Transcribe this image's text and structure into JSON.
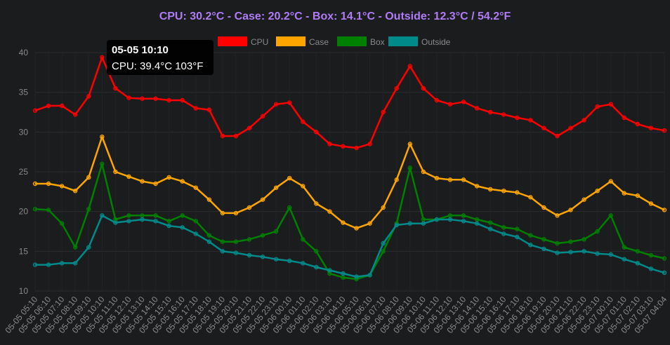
{
  "chart_data": {
    "type": "line",
    "title": "CPU: 30.2°C - Case: 20.2°C - Box: 14.1°C - Outside: 12.3°C / 54.2°F",
    "title_color": "#b07cf5",
    "ylim": [
      10,
      40
    ],
    "yticks": [
      10,
      15,
      20,
      25,
      30,
      35,
      40
    ],
    "grid": true,
    "legend_position": "top-center",
    "x_tick_labels": [
      "05-05 05:10",
      "05-05 06:10",
      "05-05 07:10",
      "05-05 08:10",
      "05-05 09:10",
      "05-05 10:10",
      "05-05 11:10",
      "05-05 12:10",
      "05-05 13:10",
      "05-05 14:10",
      "05-05 15:10",
      "05-05 16:10",
      "05-05 17:10",
      "05-05 18:10",
      "05-05 19:10",
      "05-05 20:10",
      "05-05 21:10",
      "05-05 22:10",
      "05-05 23:10",
      "05-06 00:10",
      "05-06 01:10",
      "05-06 02:10",
      "05-06 03:10",
      "05-06 04:10",
      "05-06 05:10",
      "05-06 06:10",
      "05-06 07:10",
      "05-06 08:10",
      "05-06 09:10",
      "05-06 10:10",
      "05-06 11:10",
      "05-06 12:10",
      "05-06 13:10",
      "05-06 14:10",
      "05-06 15:10",
      "05-06 16:10",
      "05-06 17:10",
      "05-06 18:10",
      "05-06 19:10",
      "05-06 20:10",
      "05-06 21:10",
      "05-06 22:10",
      "05-06 23:10",
      "05-07 00:10",
      "05-07 01:10",
      "05-07 02:10",
      "05-07 03:10",
      "05-07 04:04"
    ],
    "series": [
      {
        "name": "CPU",
        "color": "#ff0000",
        "values": [
          32.7,
          33.3,
          33.3,
          32.2,
          34.5,
          39.4,
          35.5,
          34.3,
          34.2,
          34.2,
          34.0,
          34.0,
          33.0,
          32.8,
          29.5,
          29.5,
          30.5,
          32.0,
          33.5,
          33.7,
          31.3,
          30.0,
          28.5,
          28.2,
          28.0,
          28.5,
          32.5,
          35.5,
          38.3,
          35.5,
          34.0,
          33.5,
          33.8,
          33.0,
          32.5,
          32.2,
          31.8,
          31.5,
          30.5,
          29.5,
          30.5,
          31.5,
          33.2,
          33.5,
          31.8,
          31.0,
          30.5,
          30.2
        ]
      },
      {
        "name": "Case",
        "color": "#ffa500",
        "values": [
          23.5,
          23.5,
          23.2,
          22.6,
          24.3,
          29.4,
          25.0,
          24.4,
          23.8,
          23.5,
          24.3,
          23.8,
          23.0,
          21.5,
          19.8,
          19.8,
          20.5,
          21.5,
          23.0,
          24.2,
          23.2,
          21.0,
          20.0,
          18.6,
          17.9,
          18.5,
          20.5,
          24.0,
          28.5,
          25.0,
          24.2,
          24.0,
          24.0,
          23.2,
          22.8,
          22.6,
          22.4,
          21.8,
          20.5,
          19.5,
          20.2,
          21.5,
          22.6,
          23.8,
          22.3,
          22.0,
          21.0,
          20.2
        ]
      },
      {
        "name": "Box",
        "color": "#008000",
        "values": [
          20.3,
          20.2,
          18.5,
          15.5,
          20.3,
          26.0,
          19.0,
          19.5,
          19.5,
          19.5,
          18.8,
          19.5,
          18.8,
          17.0,
          16.2,
          16.2,
          16.5,
          17.0,
          17.5,
          20.5,
          16.5,
          15.0,
          12.2,
          11.7,
          11.5,
          12.0,
          15.0,
          18.5,
          25.5,
          19.0,
          19.0,
          19.5,
          19.5,
          19.0,
          18.6,
          18.0,
          17.8,
          17.0,
          16.5,
          16.0,
          16.2,
          16.5,
          17.5,
          19.5,
          15.5,
          15.0,
          14.5,
          14.1
        ]
      },
      {
        "name": "Outside",
        "color": "#008b8b",
        "values": [
          13.3,
          13.3,
          13.5,
          13.5,
          15.5,
          19.5,
          18.6,
          18.8,
          19.0,
          18.8,
          18.2,
          18.0,
          17.2,
          16.2,
          15.0,
          14.8,
          14.5,
          14.3,
          14.0,
          13.8,
          13.5,
          13.0,
          12.6,
          12.2,
          11.8,
          12.0,
          16.0,
          18.3,
          18.5,
          18.5,
          19.0,
          19.0,
          18.8,
          18.5,
          17.8,
          17.2,
          16.8,
          15.8,
          15.3,
          14.8,
          14.9,
          15.0,
          14.7,
          14.6,
          14.0,
          13.5,
          12.8,
          12.3
        ]
      }
    ]
  },
  "tooltip": {
    "title": "05-05 10:10",
    "body": "CPU: 39.4°C 103°F"
  }
}
